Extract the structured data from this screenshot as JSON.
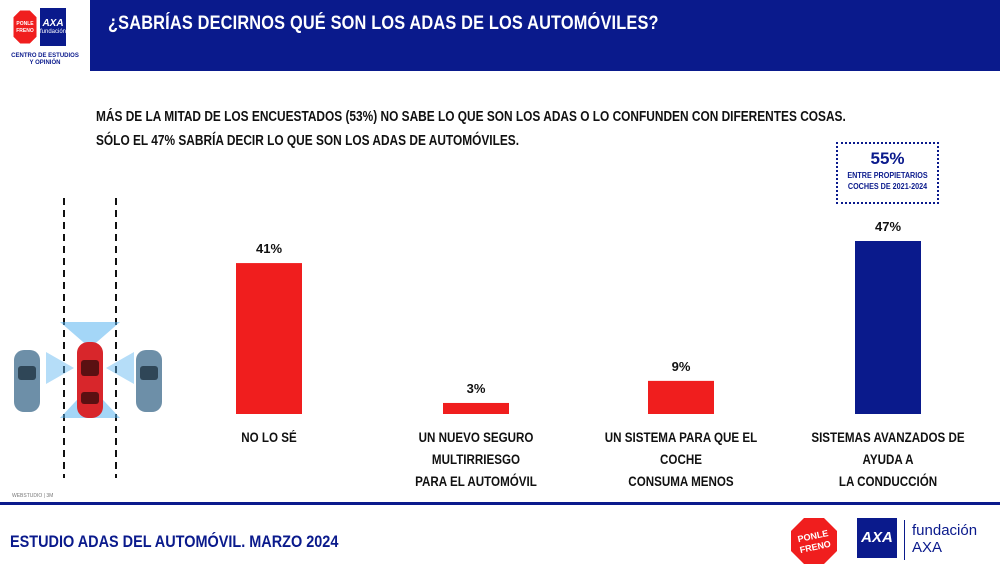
{
  "header": {
    "title": "¿SABRÍAS DECIRNOS QUÉ SON LOS ADAS DE LOS AUTOMÓVILES?",
    "logo_octagon_text": "PONLE FRENO",
    "logo_axa_text": "AXA",
    "logo_axa_sub": "fundación",
    "logo_caption_1": "CENTRO DE ESTUDIOS",
    "logo_caption_2": "Y OPINIÓN"
  },
  "subtitle": {
    "line1": "MÁS DE LA MITAD DE LOS ENCUESTADOS (53%) NO SABE LO QUE SON LOS ADAS O LO CONFUNDEN CON DIFERENTES COSAS.",
    "line2": "SÓLO EL 47% SABRÍA DECIR LO QUE SON LOS ADAS DE AUTOMÓVILES."
  },
  "callout": {
    "value": "55%",
    "line1": "ENTRE PROPIETARIOS",
    "line2": "COCHES DE 2021-2024"
  },
  "chart_data": {
    "type": "bar",
    "categories": [
      [
        "NO LO SÉ"
      ],
      [
        "UN NUEVO SEGURO MULTIRRIESGO",
        "PARA EL AUTOMÓVIL"
      ],
      [
        "UN SISTEMA PARA QUE EL COCHE",
        "CONSUMA MENOS"
      ],
      [
        "SISTEMAS AVANZADOS DE AYUDA A",
        "LA CONDUCCIÓN"
      ]
    ],
    "values": [
      41,
      3,
      9,
      47
    ],
    "value_labels": [
      "41%",
      "3%",
      "9%",
      "47%"
    ],
    "colors": [
      "#f01e1e",
      "#f01e1e",
      "#f01e1e",
      "#0a1a8c"
    ],
    "ylim": [
      0,
      47
    ]
  },
  "footer": {
    "tiny_note": "WEBSTUDIO | 3M",
    "title": "ESTUDIO ADAS DEL AUTOMÓVIL. MARZO 2024",
    "octagon_text": "PONLE FRENO",
    "axa_text": "AXA",
    "brand_line1": "fundación",
    "brand_line2": "AXA"
  },
  "colors": {
    "primary": "#0a1a8c",
    "accent": "#f01e1e"
  }
}
